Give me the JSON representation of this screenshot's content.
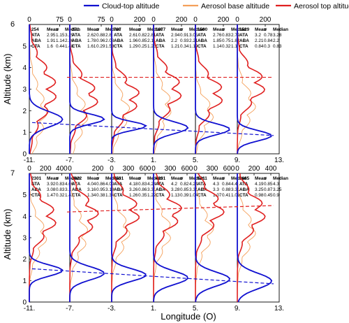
{
  "legend": [
    {
      "label": "Cloud-top altitude",
      "color": "#1010d0"
    },
    {
      "label": "Aerosol base altitude",
      "color": "#f5a05a"
    },
    {
      "label": "Aerosol top altitude",
      "color": "#e02020"
    }
  ],
  "chart_data": {
    "type": "line",
    "ylabel": "Altitude (km)",
    "xlabel": "Longitude (O)",
    "ylim": [
      0,
      6
    ],
    "yticks": [
      "0",
      "1",
      "2",
      "3",
      "4",
      "5",
      "6"
    ],
    "row_top_label": "6",
    "row_bottom_label": "7",
    "longitude_ticks": [
      "-11.",
      "-7.",
      "-3.",
      "1.",
      "5.",
      "9.",
      "13."
    ],
    "stats_headers": [
      "Mean",
      "σ",
      "Median"
    ],
    "rows": [
      {
        "panels": [
          {
            "count": "254",
            "top_ticks": [
              "0",
              "75"
            ],
            "top_max": 100,
            "stats": [
              {
                "name": "ATA",
                "values": [
                  "2.95",
                  "1.15",
                  "3.29"
                ]
              },
              {
                "name": "ABA",
                "values": [
                  "1.91",
                  "1.14",
                  "2.36"
                ]
              },
              {
                "name": "CTA",
                "values": [
                  "1.6",
                  "0.44",
                  "1.48"
                ]
              }
            ]
          },
          {
            "count": "271",
            "top_ticks": [
              "0",
              "75"
            ],
            "top_max": 100,
            "stats": [
              {
                "name": "ATA",
                "values": [
                  "2.62",
                  "0.88",
                  "2.8"
                ]
              },
              {
                "name": "ABA",
                "values": [
                  "1.78",
                  "0.96",
                  "2.08"
                ]
              },
              {
                "name": "CTA",
                "values": [
                  "1.61",
                  "0.29",
                  "1.58"
                ]
              }
            ]
          },
          {
            "count": "707",
            "top_ticks": [
              "0",
              "200"
            ],
            "top_max": 300,
            "stats": [
              {
                "name": "ATA",
                "values": [
                  "2.61",
                  "0.82",
                  "2.81"
                ]
              },
              {
                "name": "ABA",
                "values": [
                  "1.96",
                  "0.85",
                  "2.11"
                ]
              },
              {
                "name": "CTA",
                "values": [
                  "1.29",
                  "0.25",
                  "1.25"
                ]
              }
            ]
          },
          {
            "count": "1077",
            "top_ticks": [
              "0",
              "200"
            ],
            "top_max": 300,
            "stats": [
              {
                "name": "ATA",
                "values": [
                  "2.94",
                  "0.91",
                  "3.05"
                ]
              },
              {
                "name": "ABA",
                "values": [
                  "2.2",
                  "0.93",
                  "2.21"
                ]
              },
              {
                "name": "CTA",
                "values": [
                  "1.21",
                  "0.34",
                  "1.19"
                ]
              }
            ]
          },
          {
            "count": "1500",
            "top_ticks": [
              "0",
              "200"
            ],
            "top_max": 300,
            "stats": [
              {
                "name": "ATA",
                "values": [
                  "2.76",
                  "0.83",
                  "2.79"
                ]
              },
              {
                "name": "ABA",
                "values": [
                  "1.85",
                  "0.75",
                  "1.82"
                ]
              },
              {
                "name": "CTA",
                "values": [
                  "1.14",
                  "0.32",
                  "1.1"
                ]
              }
            ]
          },
          {
            "count": "1529",
            "top_ticks": [
              "0",
              "200"
            ],
            "top_max": 300,
            "stats": [
              {
                "name": "ATA",
                "values": [
                  "3.2",
                  "0.78",
                  "3.28"
                ]
              },
              {
                "name": "ABA",
                "values": [
                  "2.21",
                  "0.84",
                  "2.2"
                ]
              },
              {
                "name": "CTA",
                "values": [
                  "0.84",
                  "0.3",
                  "0.83"
                ]
              }
            ]
          }
        ],
        "trend_cloud": [
          1.45,
          0.85
        ],
        "trend_aerosol_top": [
          3.55,
          3.55
        ]
      },
      {
        "panels": [
          {
            "count": "2301",
            "top_ticks": [
              "0",
              "200",
              "400"
            ],
            "top_max": 500,
            "stats": [
              {
                "name": "ATA",
                "values": [
                  "3.92",
                  "0.83",
                  "4.06"
                ]
              },
              {
                "name": "ABA",
                "values": [
                  "3.08",
                  "0.83",
                  "3.1"
                ]
              },
              {
                "name": "CTA",
                "values": [
                  "1.47",
                  "0.32",
                  "1.43"
                ]
              }
            ]
          },
          {
            "count": "2622",
            "top_ticks": [
              "0",
              "200"
            ],
            "top_max": 300,
            "stats": [
              {
                "name": "ATA",
                "values": [
                  "4.04",
                  "0.86",
                  "4.09"
                ]
              },
              {
                "name": "ABA",
                "values": [
                  "3.16",
                  "0.95",
                  "3.19"
                ]
              },
              {
                "name": "CTA",
                "values": [
                  "1.34",
                  "0.38",
                  "1.34"
                ]
              }
            ]
          },
          {
            "count": "4531",
            "top_ticks": [
              "0",
              "300",
              "600"
            ],
            "top_max": 750,
            "stats": [
              {
                "name": "ATA",
                "values": [
                  "4.18",
                  "0.83",
                  "4.24"
                ]
              },
              {
                "name": "ABA",
                "values": [
                  "3.26",
                  "0.86",
                  "3.31"
                ]
              },
              {
                "name": "CTA",
                "values": [
                  "1.26",
                  "0.35",
                  "1.22"
                ]
              }
            ]
          },
          {
            "count": "4231",
            "top_ticks": [
              "0",
              "300",
              "600"
            ],
            "top_max": 750,
            "stats": [
              {
                "name": "ATA",
                "values": [
                  "4.2",
                  "0.82",
                  "4.24"
                ]
              },
              {
                "name": "ABA",
                "values": [
                  "3.28",
                  "0.85",
                  "3.31"
                ]
              },
              {
                "name": "CTA",
                "values": [
                  "1.13",
                  "0.39",
                  "1.04"
                ]
              }
            ]
          },
          {
            "count": "5211",
            "top_ticks": [
              "0",
              "300",
              "600"
            ],
            "top_max": 750,
            "stats": [
              {
                "name": "ATA",
                "values": [
                  "4.3",
                  "0.84",
                  "4.4"
                ]
              },
              {
                "name": "ABA",
                "values": [
                  "3.3",
                  "0.88",
                  "3.31"
                ]
              },
              {
                "name": "CTA",
                "values": [
                  "1.07",
                  "0.41",
                  "1.01"
                ]
              }
            ]
          },
          {
            "count": "3685",
            "top_ticks": [
              "0",
              "200",
              "400"
            ],
            "top_max": 500,
            "stats": [
              {
                "name": "ATA",
                "values": [
                  "4.19",
                  "0.85",
                  "4.3"
                ]
              },
              {
                "name": "ABA",
                "values": [
                  "3.25",
                  "0.87",
                  "3.25"
                ]
              },
              {
                "name": "CTA",
                "values": [
                  "0.98",
                  "0.45",
                  "0.9"
                ]
              }
            ]
          }
        ],
        "trend_cloud": [
          1.55,
          0.85
        ],
        "trend_aerosol_top": [
          4.2,
          4.5
        ]
      }
    ]
  }
}
